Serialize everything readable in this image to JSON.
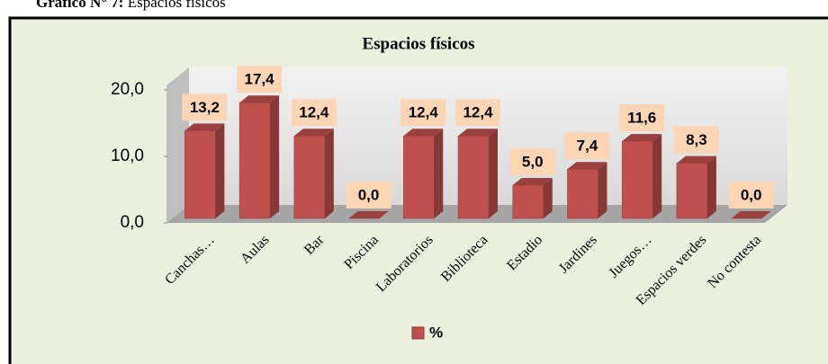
{
  "caption_label": "Gráfico N° 7:",
  "caption_text": "Espacios físicos",
  "chart_data": {
    "type": "bar3d",
    "title": "Espacios físicos",
    "categories": [
      "Canchas…",
      "Aulas",
      "Bar",
      "Piscina",
      "Laboratorios",
      "Biblioteca",
      "Estadio",
      "Jardines",
      "Juegos…",
      "Espacios verdes",
      "No contesta"
    ],
    "series": [
      {
        "name": "%",
        "color": "#c0504d",
        "values": [
          13.2,
          17.4,
          12.4,
          0,
          12.4,
          12.4,
          5,
          7.4,
          11.6,
          8.3,
          0
        ],
        "value_labels": [
          "13,2",
          "17,4",
          "12,4",
          "0,0",
          "12,4",
          "12,4",
          "5,0",
          "7,4",
          "11,6",
          "8,3",
          "0,0"
        ]
      }
    ],
    "ylim": [
      0,
      20
    ],
    "yticks": [
      {
        "value": 0,
        "label": "0,0"
      },
      {
        "value": 10,
        "label": "10,0"
      },
      {
        "value": 20,
        "label": "20,0"
      }
    ],
    "legend": "bottom"
  }
}
